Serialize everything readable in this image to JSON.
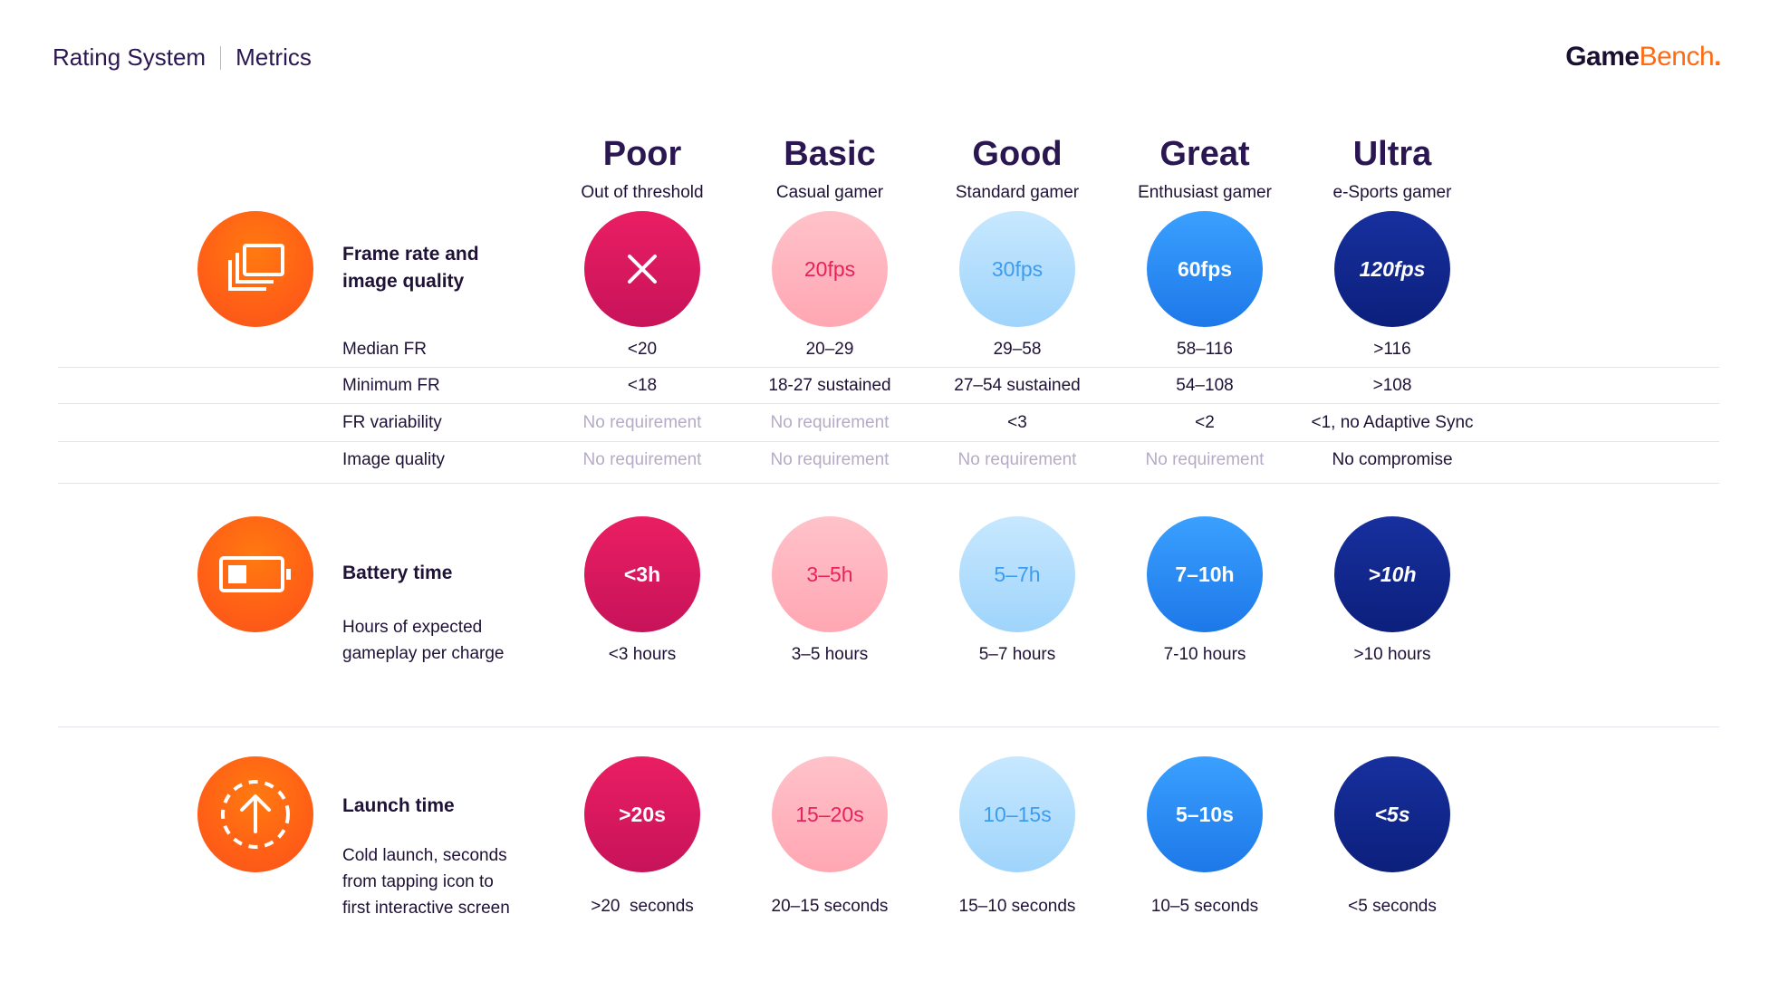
{
  "header": {
    "section": "Rating System",
    "page": "Metrics",
    "logo_game": "Game",
    "logo_bench": "Bench",
    "logo_dot": "."
  },
  "tiers": [
    {
      "name": "Poor",
      "sub": "Out of threshold"
    },
    {
      "name": "Basic",
      "sub": "Casual gamer"
    },
    {
      "name": "Good",
      "sub": "Standard gamer"
    },
    {
      "name": "Great",
      "sub": "Enthusiast gamer"
    },
    {
      "name": "Ultra",
      "sub": "e-Sports gamer"
    }
  ],
  "frame_rate": {
    "title_line1": "Frame rate and",
    "title_line2": "image quality",
    "icon": "frames-icon",
    "badges": [
      "×",
      "20fps",
      "30fps",
      "60fps",
      "120fps"
    ],
    "rows": [
      {
        "label": "Median FR",
        "values": [
          "<20",
          "20–29",
          "29–58",
          "58–116",
          ">116"
        ]
      },
      {
        "label": "Minimum FR",
        "values": [
          "<18",
          "18-27 sustained",
          "27–54 sustained",
          "54–108",
          ">108"
        ]
      },
      {
        "label": "FR variability",
        "values": [
          "No requirement",
          "No requirement",
          "<3",
          "<2",
          "<1, no Adaptive Sync"
        ]
      },
      {
        "label": "Image quality",
        "values": [
          "No requirement",
          "No requirement",
          "No requirement",
          "No requirement",
          "No compromise"
        ]
      }
    ]
  },
  "battery": {
    "title": "Battery time",
    "desc_line1": "Hours of expected",
    "desc_line2": "gameplay per charge",
    "icon": "battery-icon",
    "badges": [
      "<3h",
      "3–5h",
      "5–7h",
      "7–10h",
      ">10h"
    ],
    "captions": [
      "<3 hours",
      "3–5 hours",
      "5–7 hours",
      "7-10 hours",
      ">10 hours"
    ]
  },
  "launch": {
    "title": "Launch time",
    "desc_line1": "Cold launch, seconds",
    "desc_line2": "from tapping icon to",
    "desc_line3": "first interactive screen",
    "icon": "launch-arrow-icon",
    "badges": [
      ">20s",
      "15–20s",
      "10–15s",
      "5–10s",
      "<5s"
    ],
    "captions": [
      ">20  seconds",
      "20–15 seconds",
      "15–10 seconds",
      "10–5 seconds",
      "<5 seconds"
    ]
  },
  "colors": {
    "accent": "#ff6a13",
    "poor": "#d9185e",
    "basic": "#ffb3bd",
    "good": "#b3ddfd",
    "great": "#2a8cf5",
    "ultra": "#11268c"
  }
}
